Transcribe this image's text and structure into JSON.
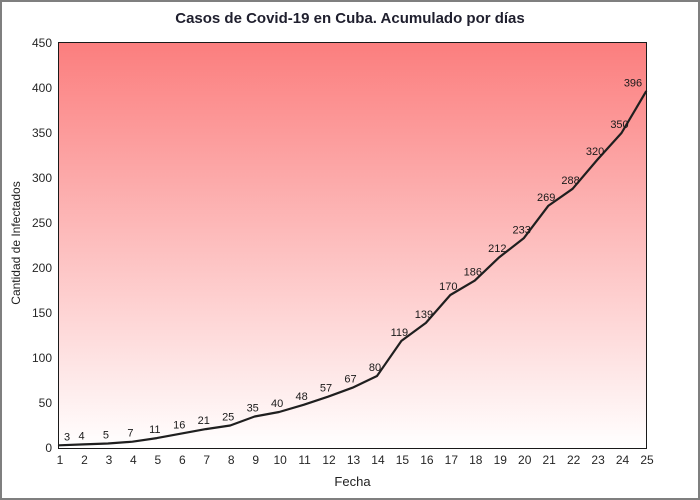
{
  "window": {
    "border_color": "#7f7f7f",
    "background": "#ffffff"
  },
  "chart_data": {
    "type": "line",
    "title": "Casos de Covid-19 en Cuba. Acumulado por días",
    "xlabel": "Fecha",
    "ylabel": "Cantidad de Infectados",
    "x": [
      1,
      2,
      3,
      4,
      5,
      6,
      7,
      8,
      9,
      10,
      11,
      12,
      13,
      14,
      15,
      16,
      17,
      18,
      19,
      20,
      21,
      22,
      23,
      24,
      25
    ],
    "values": [
      3,
      4,
      5,
      7,
      11,
      16,
      21,
      25,
      35,
      40,
      48,
      57,
      67,
      80,
      119,
      139,
      170,
      186,
      212,
      233,
      269,
      288,
      320,
      350,
      396
    ],
    "xticks": [
      1,
      2,
      3,
      4,
      5,
      6,
      7,
      8,
      9,
      10,
      11,
      12,
      13,
      14,
      15,
      16,
      17,
      18,
      19,
      20,
      21,
      22,
      23,
      24,
      25
    ],
    "yticks": [
      0,
      50,
      100,
      150,
      200,
      250,
      300,
      350,
      400,
      450
    ],
    "xlim": [
      1,
      25
    ],
    "ylim": [
      0,
      450
    ],
    "grid": false,
    "legend": null,
    "data_labels_visible": true,
    "line_color": "#1f1f1f",
    "plot_bg_gradient_top": "#fb7e7e",
    "plot_bg_gradient_bottom": "#ffffff"
  }
}
